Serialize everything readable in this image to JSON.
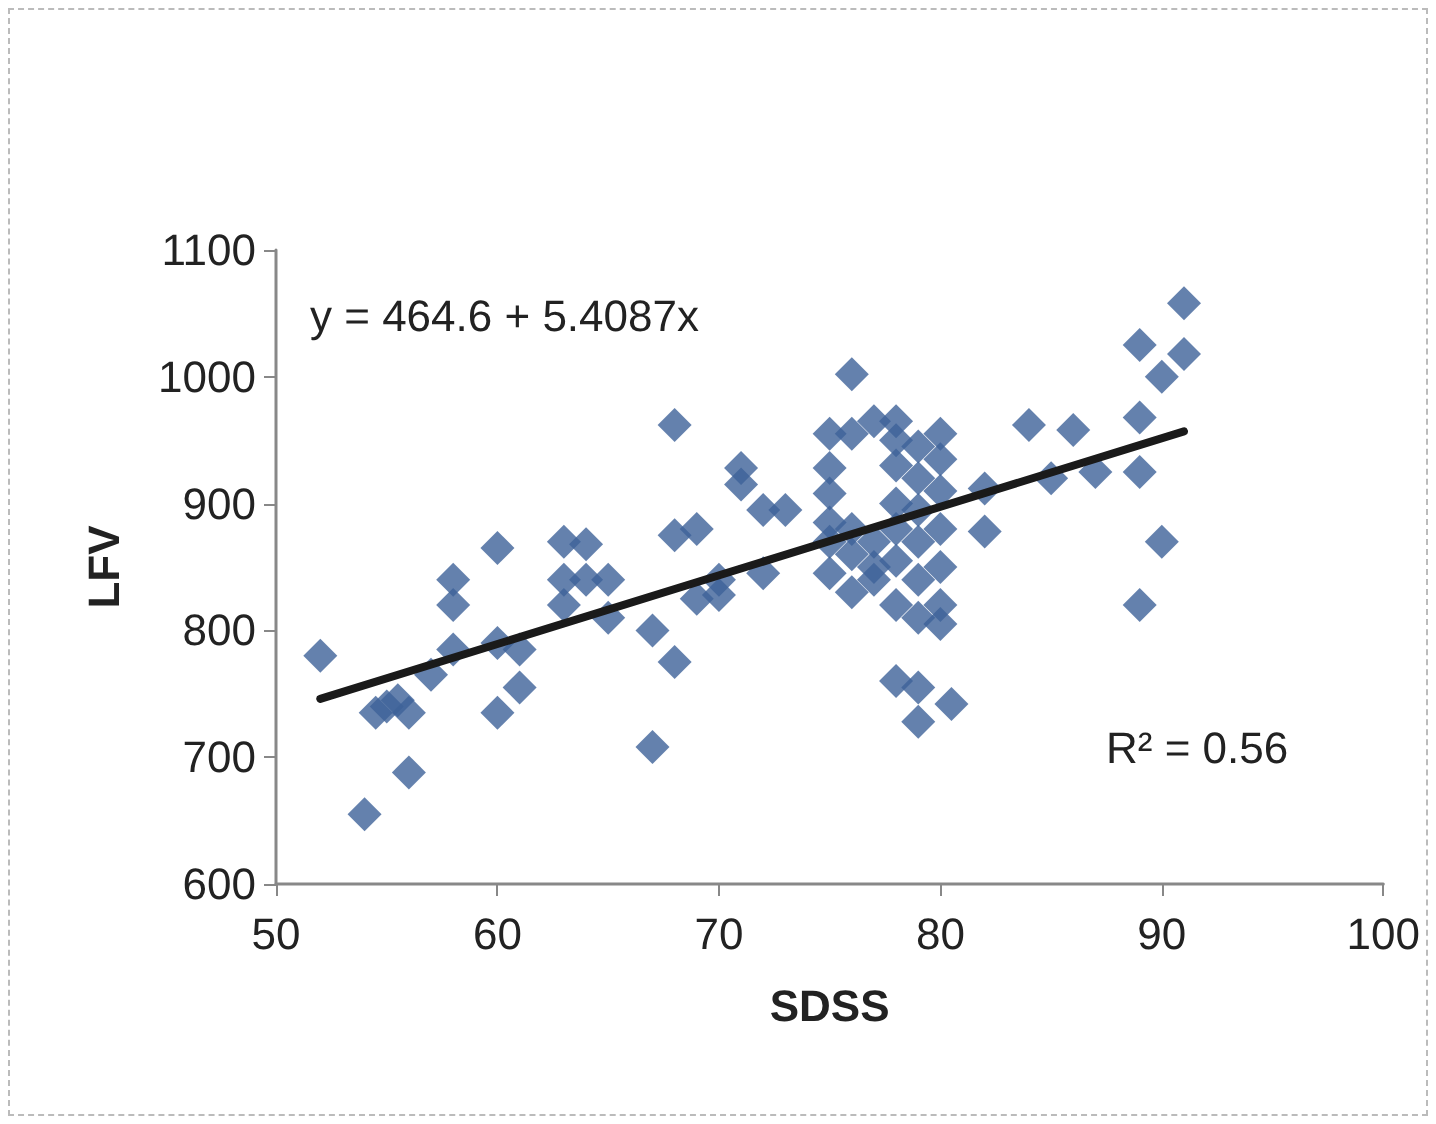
{
  "chart_data": {
    "type": "scatter",
    "xlabel": "SDSS",
    "ylabel": "LFV",
    "xlim": [
      50,
      100
    ],
    "xticks": [
      50,
      60,
      70,
      80,
      90,
      100
    ],
    "ylim": [
      600,
      1100
    ],
    "yticks": [
      600,
      700,
      800,
      900,
      1000,
      1100
    ],
    "grid": false,
    "marker": "diamond",
    "annotations": [
      "y = 464.6 + 5.4087x",
      "R² = 0.56"
    ],
    "series": [
      {
        "color": "#3d6199",
        "x": [
          52,
          54,
          54.5,
          55,
          55.5,
          56,
          56,
          57,
          58,
          58,
          58,
          60,
          60,
          60,
          61,
          61,
          63,
          63,
          63,
          64,
          64,
          65,
          65,
          67,
          67,
          68,
          68,
          68,
          69,
          69,
          70,
          70,
          71,
          71,
          72,
          72,
          73,
          75,
          75,
          75,
          75,
          75,
          75,
          76,
          76,
          76,
          76,
          76,
          77,
          77,
          77,
          77,
          78,
          78,
          78,
          78,
          78,
          78,
          78,
          78,
          79,
          79,
          79,
          79,
          79,
          79,
          79,
          79,
          80,
          80,
          80,
          80,
          80,
          80,
          80,
          80.5,
          82,
          82,
          84,
          85,
          86,
          87,
          89,
          89,
          89,
          89,
          90,
          90,
          91,
          91
        ],
        "values": [
          780,
          655,
          735,
          740,
          745,
          735,
          688,
          765,
          785,
          820,
          840,
          735,
          790,
          865,
          755,
          785,
          820,
          840,
          870,
          840,
          868,
          810,
          840,
          708,
          800,
          775,
          875,
          962,
          825,
          880,
          828,
          840,
          915,
          928,
          845,
          895,
          895,
          955,
          928,
          908,
          885,
          870,
          845,
          1002,
          955,
          880,
          860,
          830,
          965,
          850,
          870,
          840,
          965,
          950,
          930,
          900,
          880,
          855,
          820,
          760,
          945,
          920,
          895,
          870,
          840,
          810,
          755,
          728,
          955,
          935,
          910,
          880,
          850,
          820,
          805,
          742,
          912,
          878,
          962,
          920,
          958,
          925,
          1025,
          968,
          925,
          820,
          1000,
          870,
          1058,
          1018
        ]
      },
      {
        "type": "line",
        "color": "#1a1a1a",
        "marker": "none",
        "line_style": "solid",
        "x": [
          52,
          91
        ],
        "values": [
          746,
          957
        ]
      }
    ]
  }
}
